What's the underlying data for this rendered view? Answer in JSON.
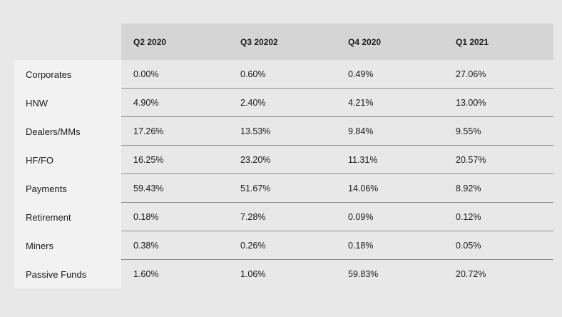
{
  "table": {
    "columns": [
      "Q2 2020",
      "Q3 20202",
      "Q4 2020",
      "Q1 2021"
    ],
    "rows": [
      {
        "label": "Corporates",
        "values": [
          "0.00%",
          "0.60%",
          "0.49%",
          "27.06%"
        ]
      },
      {
        "label": "HNW",
        "values": [
          "4.90%",
          "2.40%",
          "4.21%",
          "13.00%"
        ]
      },
      {
        "label": "Dealers/MMs",
        "values": [
          "17.26%",
          "13.53%",
          "9.84%",
          "9.55%"
        ]
      },
      {
        "label": "HF/FO",
        "values": [
          "16.25%",
          "23.20%",
          "11.31%",
          "20.57%"
        ]
      },
      {
        "label": "Payments",
        "values": [
          "59.43%",
          "51.67%",
          "14.06%",
          "8.92%"
        ]
      },
      {
        "label": "Retirement",
        "values": [
          "0.18%",
          "7.28%",
          "0.09%",
          "0.12%"
        ]
      },
      {
        "label": "Miners",
        "values": [
          "0.38%",
          "0.26%",
          "0.18%",
          "0.05%"
        ]
      },
      {
        "label": "Passive Funds",
        "values": [
          "1.60%",
          "1.06%",
          "59.83%",
          "20.72%"
        ]
      }
    ]
  },
  "colors": {
    "page_background": "#e8e8e8",
    "header_band": "#d5d5d5",
    "label_column": "#f2f2f2",
    "row_divider": "#8c8c8c",
    "text": "#1a1a1a"
  }
}
